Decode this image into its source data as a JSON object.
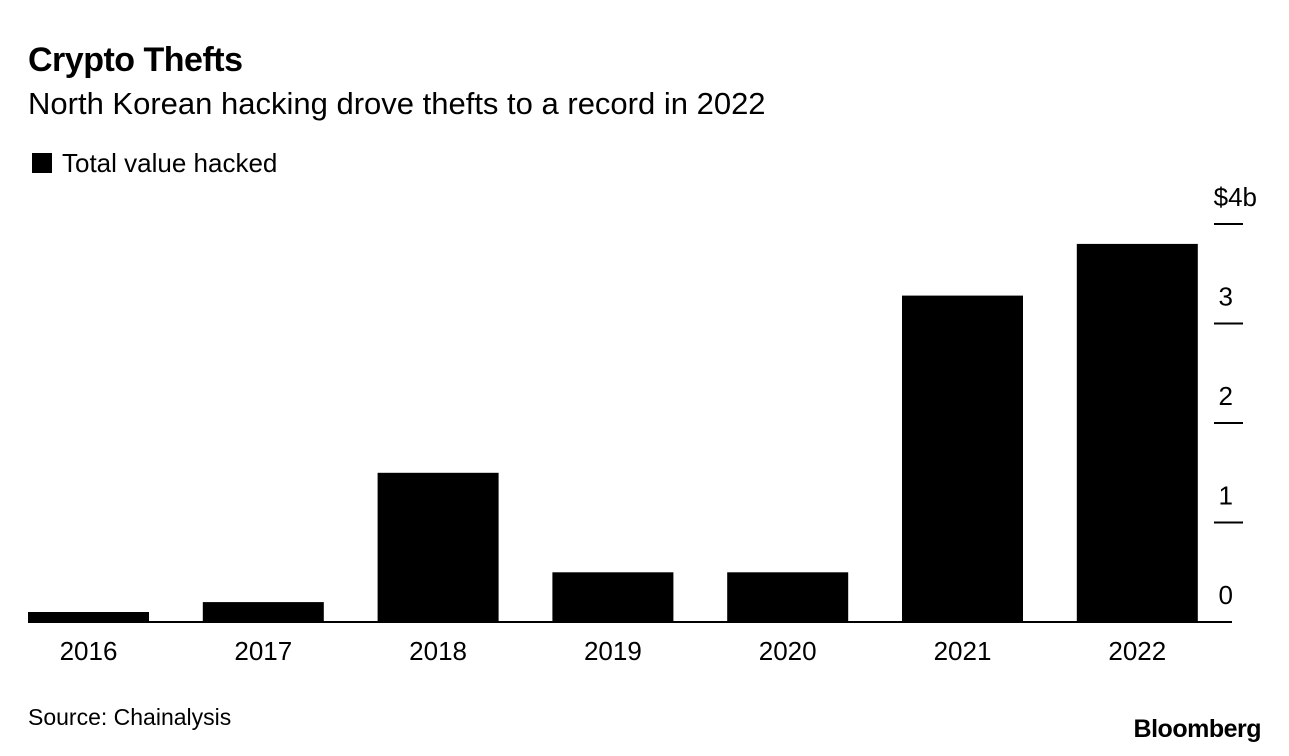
{
  "chart_data": {
    "type": "bar",
    "title": "Crypto Thefts",
    "subtitle": "North Korean hacking drove thefts to a record in 2022",
    "legend": {
      "entries": [
        "Total value hacked"
      ],
      "placement": "top-left"
    },
    "categories": [
      "2016",
      "2017",
      "2018",
      "2019",
      "2020",
      "2021",
      "2022"
    ],
    "series": [
      {
        "name": "Total value hacked",
        "values": [
          0.1,
          0.2,
          1.5,
          0.5,
          0.5,
          3.28,
          3.8
        ],
        "color": "#000000"
      }
    ],
    "y_axis": {
      "ylim": [
        0,
        4
      ],
      "position": "right",
      "ticks": [
        0,
        1,
        2,
        3,
        4
      ],
      "tick_labels": [
        "0",
        "1",
        "2",
        "3",
        "$4b"
      ]
    },
    "grid": false,
    "source": "Source: Chainalysis"
  },
  "branding": {
    "logo_text": "Bloomberg"
  },
  "colors": {
    "bar": "#000000",
    "background": "#ffffff",
    "text": "#000000"
  }
}
